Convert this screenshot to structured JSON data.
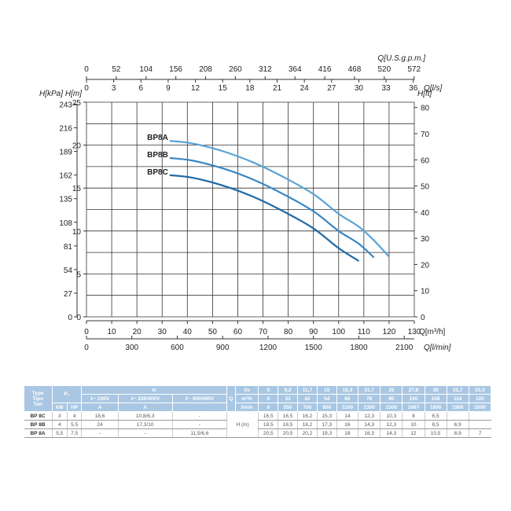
{
  "chart_data": {
    "type": "line",
    "xlabel_top": "Q[U.S.g.p.m.]",
    "xlabel_top2": "Q[l/s]",
    "xlabel": "Q[m³/h]",
    "xlabel_bottom": "Q[l/min]",
    "ylabel_left": "H[kPa]",
    "ylabel": "H[m]",
    "ylabel_right": "H[ft]",
    "xlim": [
      0,
      130
    ],
    "ylim": [
      0,
      25
    ],
    "grid": true,
    "x_ticks": [
      0,
      10,
      20,
      30,
      40,
      50,
      60,
      70,
      80,
      90,
      100,
      110,
      120,
      130
    ],
    "y_ticks": [
      0,
      5,
      10,
      15,
      20,
      25
    ],
    "kpa_ticks": [
      0,
      27,
      54,
      81,
      108,
      135,
      162,
      189,
      216,
      243
    ],
    "ft_ticks": [
      0,
      10,
      20,
      30,
      40,
      50,
      60,
      70,
      80
    ],
    "ls_ticks": [
      0,
      3,
      6,
      9,
      12,
      15,
      18,
      21,
      24,
      27,
      30,
      33,
      36
    ],
    "gpm_ticks": [
      0,
      52,
      104,
      156,
      208,
      260,
      312,
      364,
      416,
      468,
      520,
      572
    ],
    "lmin_ticks": [
      0,
      300,
      600,
      900,
      1200,
      1500,
      1800,
      2100
    ],
    "series": [
      {
        "name": "BP8A",
        "x": [
          33,
          42,
          54,
          66,
          78,
          90,
          100,
          108,
          114,
          120
        ],
        "y": [
          20.5,
          20.2,
          19.3,
          18,
          16.3,
          14.3,
          12,
          10.5,
          8.9,
          7
        ],
        "color": "#5aa3d6"
      },
      {
        "name": "BP8B",
        "x": [
          33,
          42,
          54,
          66,
          78,
          90,
          100,
          108,
          114
        ],
        "y": [
          18.5,
          18.2,
          17.3,
          16,
          14.3,
          12.3,
          10,
          8.5,
          6.9
        ],
        "color": "#3a87c4"
      },
      {
        "name": "BP8C",
        "x": [
          33,
          42,
          54,
          66,
          78,
          90,
          100,
          108
        ],
        "y": [
          16.5,
          16.2,
          15.3,
          14,
          12.3,
          10.3,
          8,
          6.5
        ],
        "color": "#1f6aa8"
      }
    ]
  },
  "table": {
    "type_h": [
      "Type",
      "Tipo",
      "Тип"
    ],
    "p1": "P₁",
    "in": "In",
    "kw": "kW",
    "hp": "HP",
    "v1": "1~ 230V",
    "v2": "3~ 230/400V",
    "v3": "3~ 400/690V",
    "a1": "A",
    "a2": "A",
    "q": "Q",
    "units": [
      "l/s",
      "m³/h",
      "l/min"
    ],
    "ls": [
      "0",
      "9,2",
      "11,7",
      "15",
      "18,3",
      "21,7",
      "25",
      "27,8",
      "30",
      "31,7",
      "33,3"
    ],
    "m3h": [
      "0",
      "33",
      "42",
      "54",
      "66",
      "78",
      "90",
      "100",
      "108",
      "114",
      "120"
    ],
    "lmin": [
      "0",
      "550",
      "700",
      "900",
      "1100",
      "1300",
      "1500",
      "1667",
      "1800",
      "1900",
      "2000"
    ],
    "hm": "H (m)",
    "rows": [
      {
        "type": "BP 8C",
        "kw": "3",
        "hp": "4",
        "a1": "18,6",
        "a2": "10,8/6,3",
        "a3": "-",
        "h": [
          "16,5",
          "16,5",
          "16,2",
          "15,3",
          "14",
          "12,3",
          "10,3",
          "8",
          "6,5",
          "",
          ""
        ]
      },
      {
        "type": "BP 8B",
        "kw": "4",
        "hp": "5,5",
        "a1": "24",
        "a2": "17,3/10",
        "a3": "-",
        "h": [
          "18,5",
          "18,5",
          "18,2",
          "17,3",
          "16",
          "14,3",
          "12,3",
          "10",
          "8,5",
          "6,9",
          ""
        ]
      },
      {
        "type": "BP 8A",
        "kw": "5,5",
        "hp": "7,5",
        "a1": "-",
        "a2": "-",
        "a3": "11,5/6,6",
        "h": [
          "20,5",
          "20,5",
          "20,2",
          "19,3",
          "18",
          "16,3",
          "14,3",
          "12",
          "10,5",
          "8,9",
          "7"
        ]
      }
    ]
  }
}
